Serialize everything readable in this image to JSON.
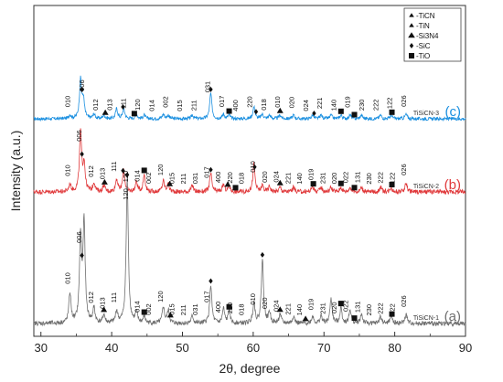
{
  "chart_data": {
    "type": "line",
    "xlabel": "2θ, degree",
    "ylabel": "Intensity (a.u.)",
    "xlim": [
      29,
      90
    ],
    "xticks": [
      30,
      40,
      50,
      60,
      70,
      80,
      90
    ],
    "y_ticks_shown": false,
    "legend": {
      "placement": "top-right",
      "entries": [
        {
          "marker": "triangle-small",
          "label": "-TiCN"
        },
        {
          "marker": "triangle-small",
          "label": "-TiN"
        },
        {
          "marker": "triangle",
          "label": "-Si3N4"
        },
        {
          "marker": "diamond",
          "label": "-SiC"
        },
        {
          "marker": "square",
          "label": "-TiO"
        }
      ]
    },
    "series": [
      {
        "name": "TiSiCN-3",
        "tag": "(c)",
        "color": "#1a8fe0",
        "offset": 238,
        "noise": 1.8,
        "peaks": [
          [
            34.1,
            4
          ],
          [
            35.6,
            42
          ],
          [
            36.0,
            20
          ],
          [
            37.5,
            5
          ],
          [
            38.9,
            4
          ],
          [
            40.7,
            11
          ],
          [
            41.7,
            11
          ],
          [
            43.5,
            5
          ],
          [
            44.6,
            4
          ],
          [
            47.3,
            5
          ],
          [
            48.0,
            4
          ],
          [
            51.4,
            4
          ],
          [
            54.0,
            28
          ],
          [
            55.8,
            5
          ],
          [
            56.6,
            4
          ],
          [
            60.1,
            13
          ],
          [
            61.3,
            5
          ],
          [
            62.3,
            4
          ],
          [
            63.8,
            4
          ],
          [
            65.7,
            4
          ],
          [
            68.4,
            4
          ],
          [
            69.6,
            4
          ],
          [
            71.0,
            4
          ],
          [
            72.4,
            4
          ],
          [
            73.7,
            4
          ],
          [
            75.3,
            4
          ],
          [
            78.0,
            4
          ],
          [
            79.5,
            4
          ],
          [
            81.6,
            5
          ]
        ],
        "peak_labels": [
          "010",
          "006",
          "012",
          "013",
          "111",
          "120",
          "014",
          "002",
          "015",
          "211",
          "031",
          "017",
          "400",
          "220",
          "018",
          "010",
          "020",
          "024",
          "221",
          "140",
          "019",
          "230",
          "222",
          "122",
          "026"
        ],
        "markers": [
          [
            35.8,
            "diamond"
          ],
          [
            39.1,
            "triangle"
          ],
          [
            41.6,
            "diamond"
          ],
          [
            43.2,
            "square"
          ],
          [
            54.0,
            "diamond"
          ],
          [
            56.6,
            "square"
          ],
          [
            60.4,
            "diamond"
          ],
          [
            63.8,
            "triangle"
          ],
          [
            68.6,
            "diamond"
          ],
          [
            72.4,
            "square"
          ],
          [
            74.3,
            "square"
          ],
          [
            79.6,
            "square"
          ]
        ]
      },
      {
        "name": "TiSiCN-2",
        "tag": "(b)",
        "color": "#e0393b",
        "offset": 158,
        "noise": 2.5,
        "peaks": [
          [
            34.1,
            8
          ],
          [
            35.6,
            65
          ],
          [
            36.1,
            30
          ],
          [
            37.5,
            10
          ],
          [
            38.9,
            7
          ],
          [
            40.7,
            14
          ],
          [
            41.7,
            24
          ],
          [
            43.5,
            11
          ],
          [
            44.6,
            19
          ],
          [
            47.3,
            12
          ],
          [
            48.0,
            8
          ],
          [
            51.4,
            7
          ],
          [
            54.0,
            20
          ],
          [
            55.8,
            8
          ],
          [
            56.6,
            6
          ],
          [
            60.1,
            30
          ],
          [
            61.3,
            7
          ],
          [
            62.3,
            6
          ],
          [
            63.8,
            5
          ],
          [
            65.7,
            5
          ],
          [
            68.4,
            6
          ],
          [
            69.6,
            5
          ],
          [
            71.0,
            5
          ],
          [
            72.4,
            5
          ],
          [
            73.7,
            5
          ],
          [
            75.3,
            5
          ],
          [
            78.0,
            5
          ],
          [
            79.5,
            5
          ],
          [
            81.6,
            10
          ]
        ],
        "peak_labels": [
          "010",
          "006",
          "012",
          "013",
          "111",
          "120",
          "014",
          "002",
          "120",
          "015",
          "211",
          "031",
          "017",
          "400",
          "220",
          "018",
          "010",
          "020",
          "024",
          "221",
          "140",
          "019",
          "231",
          "020",
          "022",
          "131",
          "230",
          "222",
          "122",
          "026"
        ],
        "markers": [
          [
            35.8,
            "diamond"
          ],
          [
            39.0,
            "triangle"
          ],
          [
            41.6,
            "diamond"
          ],
          [
            44.6,
            "square"
          ],
          [
            48.2,
            "triangle"
          ],
          [
            54.0,
            "diamond"
          ],
          [
            56.4,
            "triangle"
          ],
          [
            57.5,
            "square"
          ],
          [
            60.2,
            "diamond"
          ],
          [
            63.8,
            "triangle"
          ],
          [
            68.5,
            "square"
          ],
          [
            72.4,
            "square"
          ],
          [
            74.3,
            "square"
          ],
          [
            79.6,
            "square"
          ]
        ]
      },
      {
        "name": "TiSiCN-1",
        "tag": "(a)",
        "color": "#6e6e6e",
        "offset": 14,
        "noise": 2.5,
        "peaks": [
          [
            34.1,
            33
          ],
          [
            35.6,
            92
          ],
          [
            36.1,
            108
          ],
          [
            37.5,
            16
          ],
          [
            38.9,
            9
          ],
          [
            40.7,
            13
          ],
          [
            42.2,
            158
          ],
          [
            43.5,
            11
          ],
          [
            44.6,
            7
          ],
          [
            47.3,
            18
          ],
          [
            48.0,
            14
          ],
          [
            51.4,
            8
          ],
          [
            54.0,
            42
          ],
          [
            55.8,
            16
          ],
          [
            56.6,
            13
          ],
          [
            60.1,
            23
          ],
          [
            61.3,
            70
          ],
          [
            62.3,
            12
          ],
          [
            63.8,
            10
          ],
          [
            65.7,
            8
          ],
          [
            68.4,
            8
          ],
          [
            69.6,
            8
          ],
          [
            71.0,
            27
          ],
          [
            72.4,
            17
          ],
          [
            73.7,
            15
          ],
          [
            75.3,
            10
          ],
          [
            78.0,
            8
          ],
          [
            79.5,
            8
          ],
          [
            81.6,
            10
          ]
        ],
        "peak_labels": [
          "010",
          "006",
          "012",
          "013",
          "111",
          "120",
          "014",
          "002",
          "120",
          "015",
          "211",
          "031",
          "017",
          "400",
          "220",
          "018",
          "010",
          "020",
          "024",
          "221",
          "140",
          "019",
          "231",
          "020",
          "022",
          "131",
          "230",
          "222",
          "122",
          "026"
        ],
        "markers": [
          [
            35.8,
            "diamond"
          ],
          [
            38.9,
            "triangle"
          ],
          [
            42.2,
            "diamond"
          ],
          [
            44.6,
            "square"
          ],
          [
            48.3,
            "triangle"
          ],
          [
            54.0,
            "diamond"
          ],
          [
            56.6,
            "square"
          ],
          [
            61.3,
            "diamond"
          ],
          [
            63.8,
            "triangle"
          ],
          [
            67.4,
            "triangle"
          ],
          [
            72.4,
            "square"
          ],
          [
            74.3,
            "square"
          ],
          [
            79.6,
            "square"
          ]
        ]
      }
    ]
  }
}
